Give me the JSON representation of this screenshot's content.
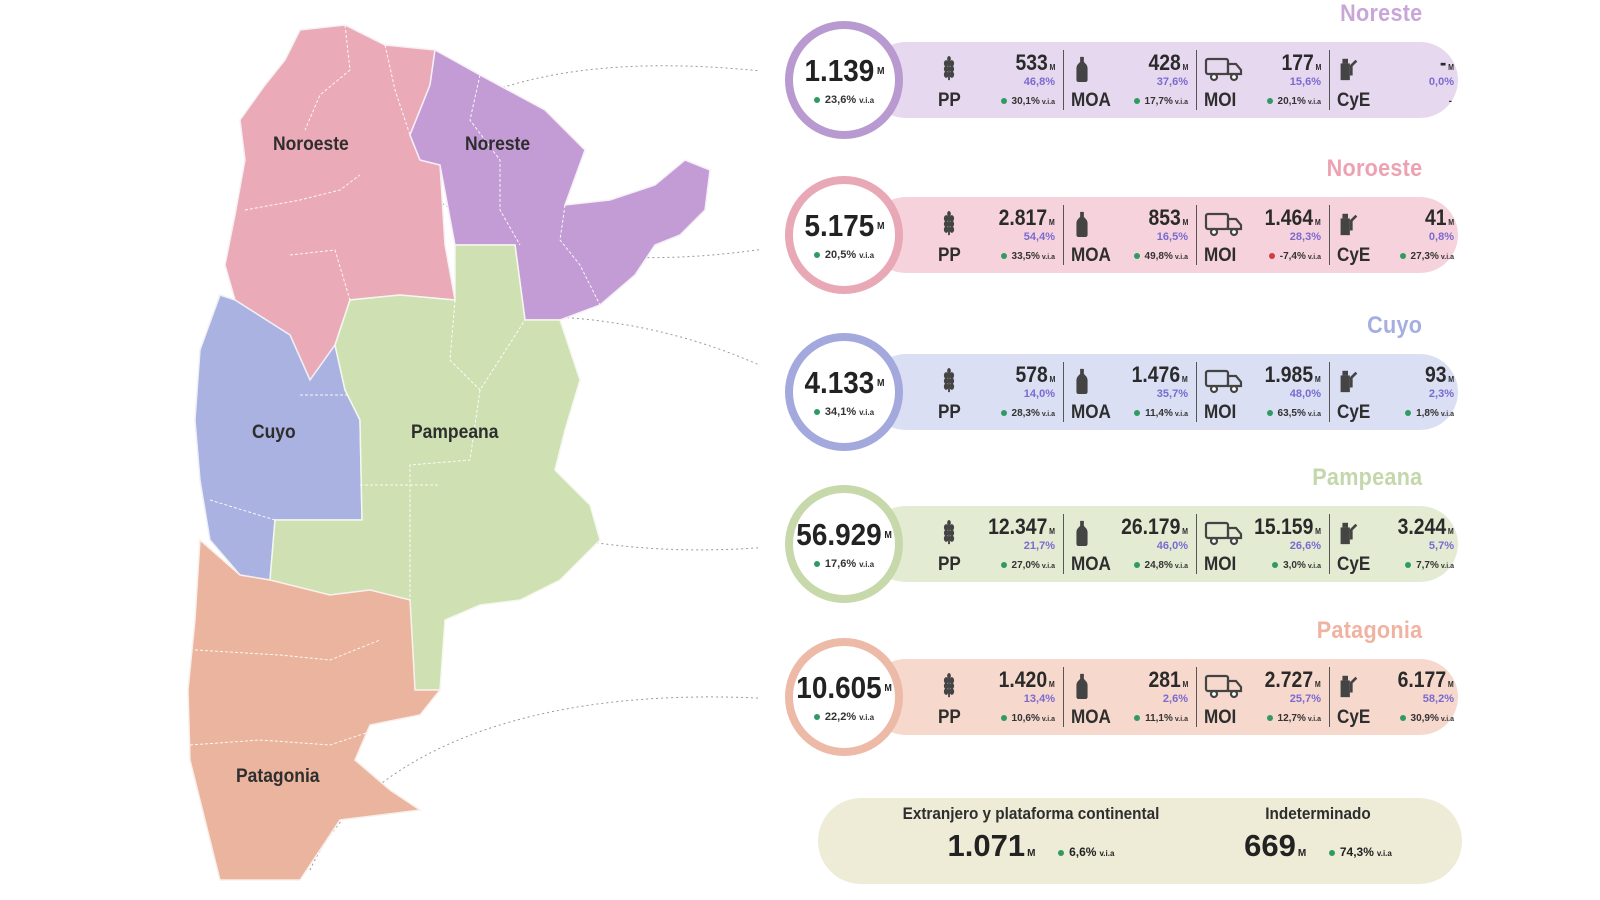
{
  "map": {
    "labels": {
      "noroeste": "Noroeste",
      "noreste": "Noreste",
      "cuyo": "Cuyo",
      "pampeana": "Pampeana",
      "patagonia": "Patagonia"
    },
    "colors": {
      "noroeste": "#eaaab8",
      "noreste": "#c39bd5",
      "cuyo": "#a9b2e0",
      "pampeana": "#cfe0b3",
      "patagonia": "#eab49e"
    }
  },
  "regions": [
    {
      "name": "Noreste",
      "title_color": "#c8a6d8",
      "pill_color": "#e6d8ee",
      "ring_color": "#b89ad0",
      "total": "1.139",
      "total_unit": "M",
      "total_var": "23,6%",
      "total_var_unit": "v.i.a",
      "items": [
        {
          "code": "PP",
          "icon": "wheat-icon",
          "value": "533",
          "unit": "M",
          "share": "46,8%",
          "growth": "30,1%",
          "growth_unit": "v.i.a",
          "growth_sign": "pos"
        },
        {
          "code": "MOA",
          "icon": "bottle-icon",
          "value": "428",
          "unit": "M",
          "share": "37,6%",
          "growth": "17,7%",
          "growth_unit": "v.i.a",
          "growth_sign": "pos"
        },
        {
          "code": "MOI",
          "icon": "truck-icon",
          "value": "177",
          "unit": "M",
          "share": "15,6%",
          "growth": "20,1%",
          "growth_unit": "v.i.a",
          "growth_sign": "pos"
        },
        {
          "code": "CyE",
          "icon": "fuel-icon",
          "value": "-",
          "unit": "M",
          "share": "0,0%",
          "growth": "-",
          "growth_unit": "",
          "growth_sign": "none"
        }
      ]
    },
    {
      "name": "Noroeste",
      "title_color": "#eda2b2",
      "pill_color": "#f6d3dc",
      "ring_color": "#e8a8b6",
      "total": "5.175",
      "total_unit": "M",
      "total_var": "20,5%",
      "total_var_unit": "v.i.a",
      "items": [
        {
          "code": "PP",
          "icon": "wheat-icon",
          "value": "2.817",
          "unit": "M",
          "share": "54,4%",
          "growth": "33,5%",
          "growth_unit": "v.i.a",
          "growth_sign": "pos"
        },
        {
          "code": "MOA",
          "icon": "bottle-icon",
          "value": "853",
          "unit": "M",
          "share": "16,5%",
          "growth": "49,8%",
          "growth_unit": "v.i.a",
          "growth_sign": "pos"
        },
        {
          "code": "MOI",
          "icon": "truck-icon",
          "value": "1.464",
          "unit": "M",
          "share": "28,3%",
          "growth": "-7,4%",
          "growth_unit": "v.i.a",
          "growth_sign": "neg"
        },
        {
          "code": "CyE",
          "icon": "fuel-icon",
          "value": "41",
          "unit": "M",
          "share": "0,8%",
          "growth": "27,3%",
          "growth_unit": "v.i.a",
          "growth_sign": "pos"
        }
      ]
    },
    {
      "name": "Cuyo",
      "title_color": "#a6aee0",
      "pill_color": "#dadff3",
      "ring_color": "#a3a8dd",
      "total": "4.133",
      "total_unit": "M",
      "total_var": "34,1%",
      "total_var_unit": "v.i.a",
      "items": [
        {
          "code": "PP",
          "icon": "wheat-icon",
          "value": "578",
          "unit": "M",
          "share": "14,0%",
          "growth": "28,3%",
          "growth_unit": "v.i.a",
          "growth_sign": "pos"
        },
        {
          "code": "MOA",
          "icon": "bottle-icon",
          "value": "1.476",
          "unit": "M",
          "share": "35,7%",
          "growth": "11,4%",
          "growth_unit": "v.i.a",
          "growth_sign": "pos"
        },
        {
          "code": "MOI",
          "icon": "truck-icon",
          "value": "1.985",
          "unit": "M",
          "share": "48,0%",
          "growth": "63,5%",
          "growth_unit": "v.i.a",
          "growth_sign": "pos"
        },
        {
          "code": "CyE",
          "icon": "fuel-icon",
          "value": "93",
          "unit": "M",
          "share": "2,3%",
          "growth": "1,8%",
          "growth_unit": "v.i.a",
          "growth_sign": "pos"
        }
      ]
    },
    {
      "name": "Pampeana",
      "title_color": "#c4d7aa",
      "pill_color": "#e3ecd3",
      "ring_color": "#c7d8ab",
      "total": "56.929",
      "total_unit": "M",
      "total_var": "17,6%",
      "total_var_unit": "v.i.a",
      "items": [
        {
          "code": "PP",
          "icon": "wheat-icon",
          "value": "12.347",
          "unit": "M",
          "share": "21,7%",
          "growth": "27,0%",
          "growth_unit": "v.i.a",
          "growth_sign": "pos"
        },
        {
          "code": "MOA",
          "icon": "bottle-icon",
          "value": "26.179",
          "unit": "M",
          "share": "46,0%",
          "growth": "24,8%",
          "growth_unit": "v.i.a",
          "growth_sign": "pos"
        },
        {
          "code": "MOI",
          "icon": "truck-icon",
          "value": "15.159",
          "unit": "M",
          "share": "26,6%",
          "growth": "3,0%",
          "growth_unit": "v.i.a",
          "growth_sign": "pos"
        },
        {
          "code": "CyE",
          "icon": "fuel-icon",
          "value": "3.244",
          "unit": "M",
          "share": "5,7%",
          "growth": "7,7%",
          "growth_unit": "v.i.a",
          "growth_sign": "pos"
        }
      ]
    },
    {
      "name": "Patagonia",
      "title_color": "#f0b3a2",
      "pill_color": "#f6d8cc",
      "ring_color": "#edbaa8",
      "total": "10.605",
      "total_unit": "M",
      "total_var": "22,2%",
      "total_var_unit": "v.i.a",
      "items": [
        {
          "code": "PP",
          "icon": "wheat-icon",
          "value": "1.420",
          "unit": "M",
          "share": "13,4%",
          "growth": "10,6%",
          "growth_unit": "v.i.a",
          "growth_sign": "pos"
        },
        {
          "code": "MOA",
          "icon": "bottle-icon",
          "value": "281",
          "unit": "M",
          "share": "2,6%",
          "growth": "11,1%",
          "growth_unit": "v.i.a",
          "growth_sign": "pos"
        },
        {
          "code": "MOI",
          "icon": "truck-icon",
          "value": "2.727",
          "unit": "M",
          "share": "25,7%",
          "growth": "12,7%",
          "growth_unit": "v.i.a",
          "growth_sign": "pos"
        },
        {
          "code": "CyE",
          "icon": "fuel-icon",
          "value": "6.177",
          "unit": "M",
          "share": "58,2%",
          "growth": "30,9%",
          "growth_unit": "v.i.a",
          "growth_sign": "pos"
        }
      ]
    }
  ],
  "bottom": {
    "extranjero": {
      "label": "Extranjero y plataforma continental",
      "value": "1.071",
      "unit": "M",
      "var": "6,6%",
      "var_unit": "v.i.a"
    },
    "indeterminado": {
      "label": "Indeterminado",
      "value": "669",
      "unit": "M",
      "var": "74,3%",
      "var_unit": "v.i.a"
    }
  }
}
